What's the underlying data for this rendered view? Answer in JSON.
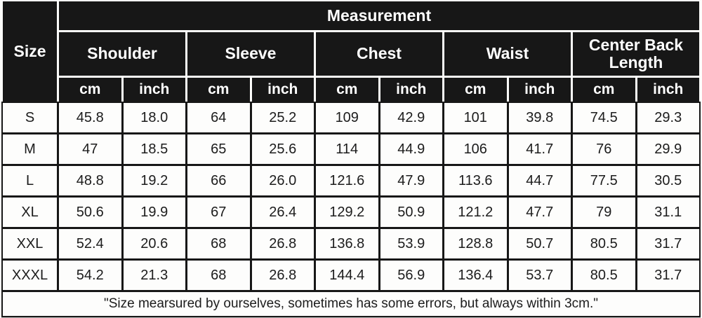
{
  "colors": {
    "header_bg": "#171717",
    "header_text": "#ffffff",
    "cell_bg": "#fdfdfc",
    "grid_line": "#171717",
    "body_text": "#1c1c1c"
  },
  "table": {
    "size_header": "Size",
    "measurement_header": "Measurement",
    "groups": [
      {
        "label": "Shoulder"
      },
      {
        "label": "Sleeve"
      },
      {
        "label": "Chest"
      },
      {
        "label": "Waist"
      },
      {
        "label": "Center Back Length"
      }
    ],
    "units": [
      "cm",
      "inch",
      "cm",
      "inch",
      "cm",
      "inch",
      "cm",
      "inch",
      "cm",
      "inch"
    ],
    "rows": [
      {
        "size": "S",
        "values": [
          "45.8",
          "18.0",
          "64",
          "25.2",
          "109",
          "42.9",
          "101",
          "39.8",
          "74.5",
          "29.3"
        ]
      },
      {
        "size": "M",
        "values": [
          "47",
          "18.5",
          "65",
          "25.6",
          "114",
          "44.9",
          "106",
          "41.7",
          "76",
          "29.9"
        ]
      },
      {
        "size": "L",
        "values": [
          "48.8",
          "19.2",
          "66",
          "26.0",
          "121.6",
          "47.9",
          "113.6",
          "44.7",
          "77.5",
          "30.5"
        ]
      },
      {
        "size": "XL",
        "values": [
          "50.6",
          "19.9",
          "67",
          "26.4",
          "129.2",
          "50.9",
          "121.2",
          "47.7",
          "79",
          "31.1"
        ]
      },
      {
        "size": "XXL",
        "values": [
          "52.4",
          "20.6",
          "68",
          "26.8",
          "136.8",
          "53.9",
          "128.8",
          "50.7",
          "80.5",
          "31.7"
        ]
      },
      {
        "size": "XXXL",
        "values": [
          "54.2",
          "21.3",
          "68",
          "26.8",
          "144.4",
          "56.9",
          "136.4",
          "53.7",
          "80.5",
          "31.7"
        ]
      }
    ],
    "footnote": "\"Size mearsured by ourselves, sometimes has some errors, but always within 3cm.\""
  }
}
